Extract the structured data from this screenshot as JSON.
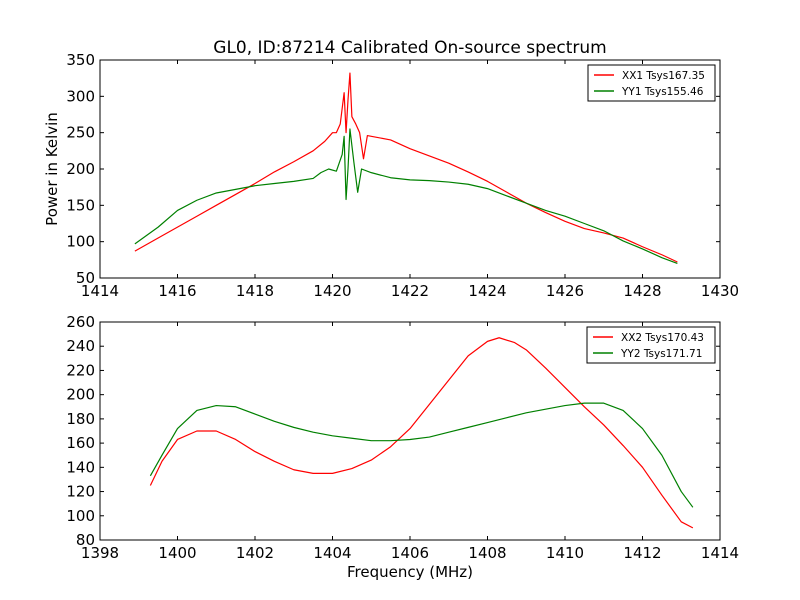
{
  "chart_data": [
    {
      "type": "line",
      "title": "GL0, ID:87214 Calibrated On-source spectrum",
      "xlabel": "",
      "ylabel": "Power in Kelvin",
      "xlim": [
        1414,
        1430
      ],
      "ylim": [
        50,
        350
      ],
      "xticks": [
        1414,
        1416,
        1418,
        1420,
        1422,
        1424,
        1426,
        1428,
        1430
      ],
      "yticks": [
        50,
        100,
        150,
        200,
        250,
        300,
        350
      ],
      "legend_position": "top-right",
      "grid": false,
      "series": [
        {
          "name": "XX1 Tsys167.35",
          "color": "#ff0000",
          "points": [
            [
              1414.9,
              87
            ],
            [
              1415.5,
              105
            ],
            [
              1416,
              120
            ],
            [
              1416.5,
              135
            ],
            [
              1417,
              150
            ],
            [
              1417.5,
              165
            ],
            [
              1418,
              180
            ],
            [
              1418.5,
              196
            ],
            [
              1419,
              210
            ],
            [
              1419.5,
              225
            ],
            [
              1419.8,
              238
            ],
            [
              1420,
              250
            ],
            [
              1420.1,
              250
            ],
            [
              1420.2,
              262
            ],
            [
              1420.3,
              305
            ],
            [
              1420.35,
              250
            ],
            [
              1420.4,
              295
            ],
            [
              1420.45,
              332
            ],
            [
              1420.5,
              272
            ],
            [
              1420.6,
              262
            ],
            [
              1420.7,
              250
            ],
            [
              1420.8,
              214
            ],
            [
              1420.9,
              246
            ],
            [
              1421,
              245
            ],
            [
              1421.5,
              240
            ],
            [
              1422,
              228
            ],
            [
              1422.5,
              218
            ],
            [
              1423,
              208
            ],
            [
              1423.5,
              196
            ],
            [
              1424,
              183
            ],
            [
              1424.5,
              168
            ],
            [
              1425,
              153
            ],
            [
              1425.5,
              140
            ],
            [
              1426,
              128
            ],
            [
              1426.5,
              118
            ],
            [
              1427,
              112
            ],
            [
              1427.5,
              105
            ],
            [
              1428,
              93
            ],
            [
              1428.5,
              82
            ],
            [
              1428.9,
              72
            ]
          ]
        },
        {
          "name": "YY1 Tsys155.46",
          "color": "#008000",
          "points": [
            [
              1414.9,
              97
            ],
            [
              1415.5,
              120
            ],
            [
              1416,
              143
            ],
            [
              1416.5,
              157
            ],
            [
              1417,
              167
            ],
            [
              1417.5,
              172
            ],
            [
              1418,
              177
            ],
            [
              1418.5,
              180
            ],
            [
              1419,
              183
            ],
            [
              1419.5,
              187
            ],
            [
              1419.7,
              195
            ],
            [
              1419.9,
              200
            ],
            [
              1420.1,
              197
            ],
            [
              1420.25,
              220
            ],
            [
              1420.3,
              245
            ],
            [
              1420.35,
              158
            ],
            [
              1420.4,
              200
            ],
            [
              1420.45,
              255
            ],
            [
              1420.55,
              210
            ],
            [
              1420.65,
              168
            ],
            [
              1420.75,
              200
            ],
            [
              1421,
              195
            ],
            [
              1421.5,
              188
            ],
            [
              1422,
              185
            ],
            [
              1422.5,
              184
            ],
            [
              1423,
              182
            ],
            [
              1423.5,
              179
            ],
            [
              1424,
              173
            ],
            [
              1424.5,
              163
            ],
            [
              1425,
              153
            ],
            [
              1425.5,
              143
            ],
            [
              1426,
              135
            ],
            [
              1426.5,
              125
            ],
            [
              1427,
              115
            ],
            [
              1427.5,
              101
            ],
            [
              1428,
              90
            ],
            [
              1428.5,
              78
            ],
            [
              1428.9,
              70
            ]
          ]
        }
      ]
    },
    {
      "type": "line",
      "title": "",
      "xlabel": "Frequency (MHz)",
      "ylabel": "",
      "xlim": [
        1398,
        1414
      ],
      "ylim": [
        80,
        260
      ],
      "xticks": [
        1398,
        1400,
        1402,
        1404,
        1406,
        1408,
        1410,
        1412,
        1414
      ],
      "yticks": [
        80,
        100,
        120,
        140,
        160,
        180,
        200,
        220,
        240,
        260
      ],
      "legend_position": "top-right",
      "grid": false,
      "series": [
        {
          "name": "XX2 Tsys170.43",
          "color": "#ff0000",
          "points": [
            [
              1399.3,
              125
            ],
            [
              1399.6,
              145
            ],
            [
              1400,
              163
            ],
            [
              1400.5,
              170
            ],
            [
              1401,
              170
            ],
            [
              1401.5,
              163
            ],
            [
              1402,
              153
            ],
            [
              1402.5,
              145
            ],
            [
              1403,
              138
            ],
            [
              1403.5,
              135
            ],
            [
              1404,
              135
            ],
            [
              1404.5,
              139
            ],
            [
              1405,
              146
            ],
            [
              1405.5,
              157
            ],
            [
              1406,
              172
            ],
            [
              1406.5,
              192
            ],
            [
              1407,
              212
            ],
            [
              1407.5,
              232
            ],
            [
              1408,
              244
            ],
            [
              1408.3,
              247
            ],
            [
              1408.7,
              243
            ],
            [
              1409,
              237
            ],
            [
              1409.5,
              222
            ],
            [
              1410,
              206
            ],
            [
              1410.5,
              190
            ],
            [
              1411,
              175
            ],
            [
              1411.5,
              158
            ],
            [
              1412,
              140
            ],
            [
              1412.5,
              117
            ],
            [
              1413,
              95
            ],
            [
              1413.3,
              90
            ]
          ]
        },
        {
          "name": "YY2 Tsys171.71",
          "color": "#008000",
          "points": [
            [
              1399.3,
              133
            ],
            [
              1399.6,
              150
            ],
            [
              1400,
              172
            ],
            [
              1400.5,
              187
            ],
            [
              1401,
              191
            ],
            [
              1401.5,
              190
            ],
            [
              1402,
              184
            ],
            [
              1402.5,
              178
            ],
            [
              1403,
              173
            ],
            [
              1403.5,
              169
            ],
            [
              1404,
              166
            ],
            [
              1404.5,
              164
            ],
            [
              1405,
              162
            ],
            [
              1405.5,
              162
            ],
            [
              1406,
              163
            ],
            [
              1406.5,
              165
            ],
            [
              1407,
              169
            ],
            [
              1407.5,
              173
            ],
            [
              1408,
              177
            ],
            [
              1408.5,
              181
            ],
            [
              1409,
              185
            ],
            [
              1409.5,
              188
            ],
            [
              1410,
              191
            ],
            [
              1410.5,
              193
            ],
            [
              1411,
              193
            ],
            [
              1411.5,
              187
            ],
            [
              1412,
              172
            ],
            [
              1412.5,
              150
            ],
            [
              1413,
              120
            ],
            [
              1413.3,
              107
            ]
          ]
        }
      ]
    }
  ]
}
